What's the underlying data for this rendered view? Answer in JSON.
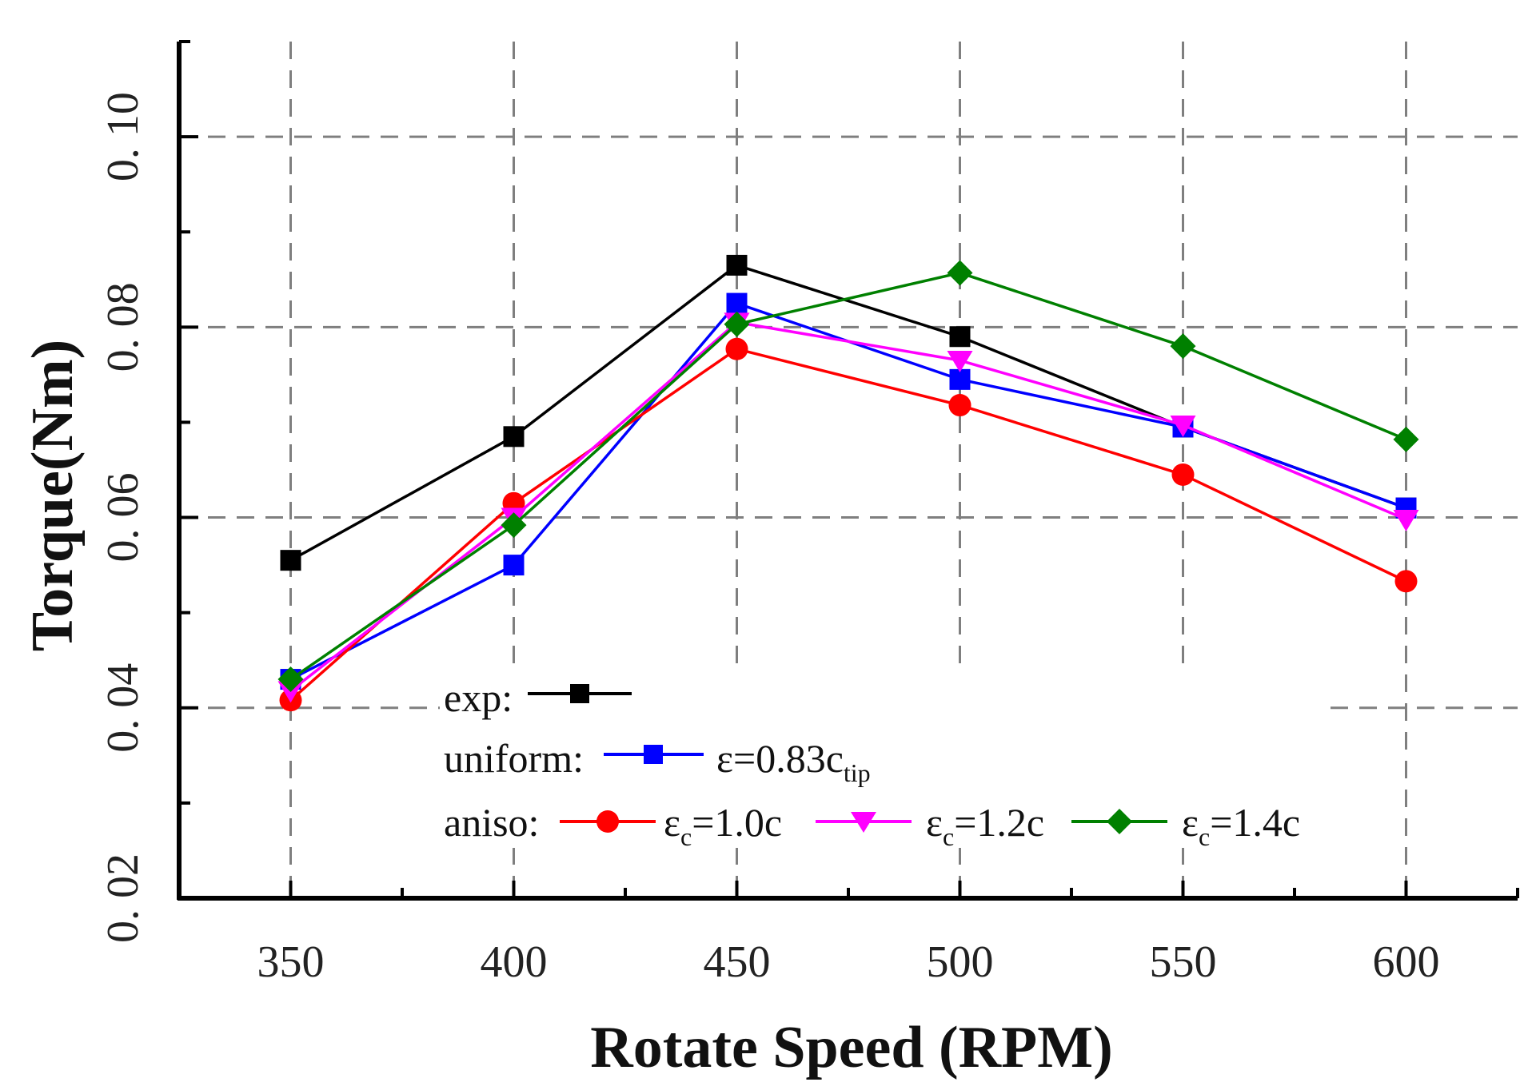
{
  "chart_data": {
    "type": "line",
    "title": "",
    "xlabel": "Rotate Speed (RPM)",
    "ylabel": "Torque(Nm)",
    "x": [
      350,
      400,
      450,
      500,
      550,
      600
    ],
    "x_tick_labels": [
      "350",
      "400",
      "450",
      "500",
      "550",
      "600"
    ],
    "xlim": [
      325,
      625
    ],
    "ylim": [
      0.02,
      0.11
    ],
    "y_ticks": [
      0.02,
      0.04,
      0.06,
      0.08,
      0.1
    ],
    "y_tick_labels": [
      "0. 02",
      "0. 04",
      "0. 06",
      "0. 08",
      "0. 10"
    ],
    "grid": true,
    "legend_position": "bottom-center",
    "series": [
      {
        "key": "exp",
        "name": "exp",
        "color": "#000000",
        "marker": "square",
        "values": [
          0.0555,
          0.0685,
          0.0865,
          0.079,
          0.0695,
          0.061
        ]
      },
      {
        "key": "uniform",
        "name": "ε=0.83c_tip",
        "color": "#0000ff",
        "marker": "square",
        "values": [
          0.043,
          0.055,
          0.0825,
          0.0745,
          0.0695,
          0.061
        ]
      },
      {
        "key": "aniso10",
        "name": "ε_c=1.0c",
        "color": "#ff0000",
        "marker": "circle",
        "values": [
          0.0408,
          0.0615,
          0.0777,
          0.0718,
          0.0645,
          0.0533
        ]
      },
      {
        "key": "aniso12",
        "name": "ε_c=1.2c",
        "color": "#ff00ff",
        "marker": "triangle-down",
        "values": [
          0.0418,
          0.06,
          0.0805,
          0.0765,
          0.0697,
          0.0598
        ]
      },
      {
        "key": "aniso14",
        "name": "ε_c=1.4c",
        "color": "#008000",
        "marker": "diamond",
        "values": [
          0.043,
          0.0592,
          0.0803,
          0.0857,
          0.078,
          0.0682
        ]
      }
    ],
    "legend": {
      "row1": {
        "label": "exp:"
      },
      "row2": {
        "label": "uniform:",
        "eps": "ε=0.83c",
        "sub": "tip"
      },
      "row3": {
        "label": "aniso:",
        "items": [
          {
            "eps": "ε",
            "sub": "c",
            "rest": "=1.0c"
          },
          {
            "eps": "ε",
            "sub": "c",
            "rest": "=1.2c"
          },
          {
            "eps": "ε",
            "sub": "c",
            "rest": "=1.4c"
          }
        ]
      }
    }
  }
}
